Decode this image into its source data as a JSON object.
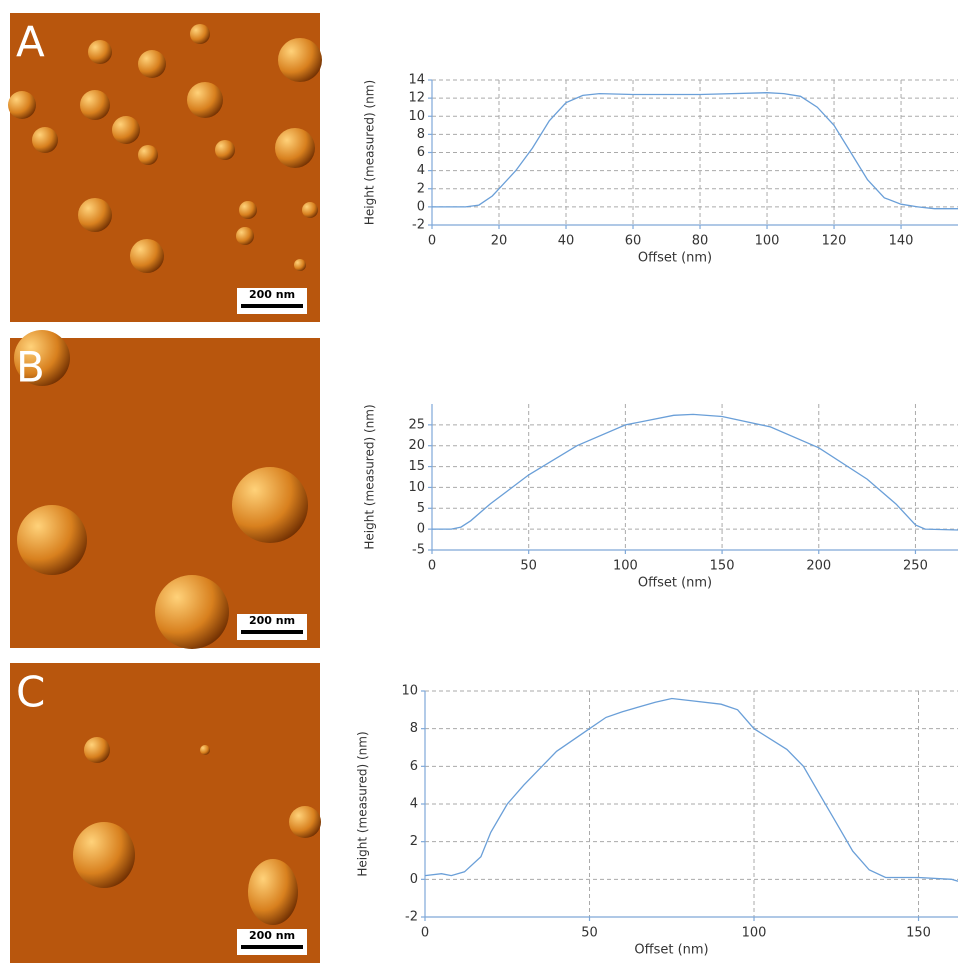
{
  "panels": [
    {
      "label": "A",
      "scale_bar": "200 nm"
    },
    {
      "label": "B",
      "scale_bar": "200 nm"
    },
    {
      "label": "C",
      "scale_bar": "200 nm"
    }
  ],
  "chart_data": [
    {
      "type": "line",
      "xlabel": "Offset (nm)",
      "ylabel": "Height (measured) (nm)",
      "xlim": [
        0,
        157
      ],
      "xticks": [
        0,
        20,
        40,
        60,
        80,
        100,
        120,
        140
      ],
      "ylim": [
        -2,
        14
      ],
      "yticks": [
        -2,
        0,
        2,
        4,
        6,
        8,
        10,
        12,
        14
      ],
      "grid": true,
      "x": [
        0,
        10,
        14,
        18,
        20,
        25,
        30,
        35,
        40,
        45,
        50,
        60,
        80,
        100,
        105,
        110,
        115,
        120,
        125,
        130,
        135,
        140,
        145,
        150,
        157
      ],
      "series": [
        {
          "color": "#6a9fd8",
          "values": [
            0,
            0,
            0.2,
            1.2,
            2,
            4,
            6.5,
            9.5,
            11.5,
            12.3,
            12.5,
            12.4,
            12.4,
            12.6,
            12.5,
            12.2,
            11,
            9,
            6,
            3,
            1,
            0.3,
            0,
            -0.2,
            -0.2
          ]
        }
      ]
    },
    {
      "type": "line",
      "xlabel": "Offset (nm)",
      "ylabel": "Height (measured) (nm)",
      "xlim": [
        0,
        272
      ],
      "xticks": [
        0,
        50,
        100,
        150,
        200,
        250
      ],
      "ylim": [
        -5,
        30
      ],
      "yticks": [
        -5,
        0,
        5,
        10,
        15,
        20,
        25
      ],
      "grid": true,
      "x": [
        0,
        10,
        15,
        20,
        30,
        40,
        50,
        75,
        100,
        125,
        135,
        150,
        175,
        200,
        225,
        240,
        250,
        255,
        272
      ],
      "series": [
        {
          "color": "#6a9fd8",
          "values": [
            0,
            0,
            0.5,
            2,
            6,
            9.5,
            13,
            20,
            25,
            27.3,
            27.5,
            27,
            24.5,
            19.5,
            12,
            6,
            1,
            0,
            -0.2
          ]
        }
      ]
    },
    {
      "type": "line",
      "xlabel": "Offset (nm)",
      "ylabel": "Height (measured) (nm)",
      "xlim": [
        0,
        162
      ],
      "xticks": [
        0,
        50,
        100,
        150
      ],
      "ylim": [
        -2,
        10
      ],
      "yticks": [
        -2,
        0,
        2,
        4,
        6,
        8,
        10
      ],
      "grid": true,
      "x": [
        0,
        5,
        8,
        12,
        17,
        20,
        25,
        30,
        40,
        50,
        55,
        60,
        70,
        75,
        80,
        90,
        95,
        100,
        110,
        115,
        120,
        125,
        130,
        135,
        140,
        150,
        160,
        162
      ],
      "series": [
        {
          "color": "#6a9fd8",
          "values": [
            0.2,
            0.3,
            0.2,
            0.4,
            1.2,
            2.5,
            4,
            5,
            6.8,
            8,
            8.6,
            8.9,
            9.4,
            9.6,
            9.5,
            9.3,
            9,
            8,
            6.9,
            6,
            4.5,
            3,
            1.5,
            0.5,
            0.1,
            0.1,
            0,
            -0.1
          ]
        }
      ]
    }
  ]
}
